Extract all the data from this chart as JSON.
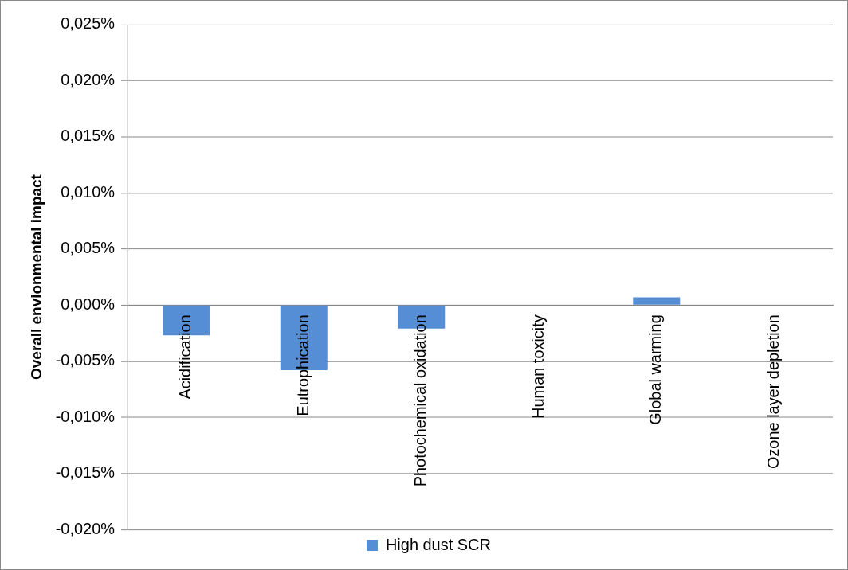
{
  "chart_data": {
    "type": "bar",
    "ylabel": "Overall envionmental impact",
    "categories": [
      "Acidification",
      "Eutrophication",
      "Photochemical oxidation",
      "Human toxicity",
      "Global warming",
      "Ozone layer depletion"
    ],
    "series": [
      {
        "name": "High dust SCR",
        "color": "#558ed5",
        "values": [
          -0.0027,
          -0.0058,
          -0.0021,
          0,
          0.0007,
          0
        ]
      }
    ],
    "ylim": [
      -0.02,
      0.025
    ],
    "yticks": [
      {
        "value": -0.02,
        "label": "-0,020%"
      },
      {
        "value": -0.015,
        "label": "-0,015%"
      },
      {
        "value": -0.01,
        "label": "-0,010%"
      },
      {
        "value": -0.005,
        "label": "-0,005%"
      },
      {
        "value": 0,
        "label": "0,000%"
      },
      {
        "value": 0.005,
        "label": "0,005%"
      },
      {
        "value": 0.01,
        "label": "0,010%"
      },
      {
        "value": 0.015,
        "label": "0,015%"
      },
      {
        "value": 0.02,
        "label": "0,020%"
      },
      {
        "value": 0.025,
        "label": "0,025%"
      }
    ],
    "grid": "y",
    "legend": "bottom"
  }
}
